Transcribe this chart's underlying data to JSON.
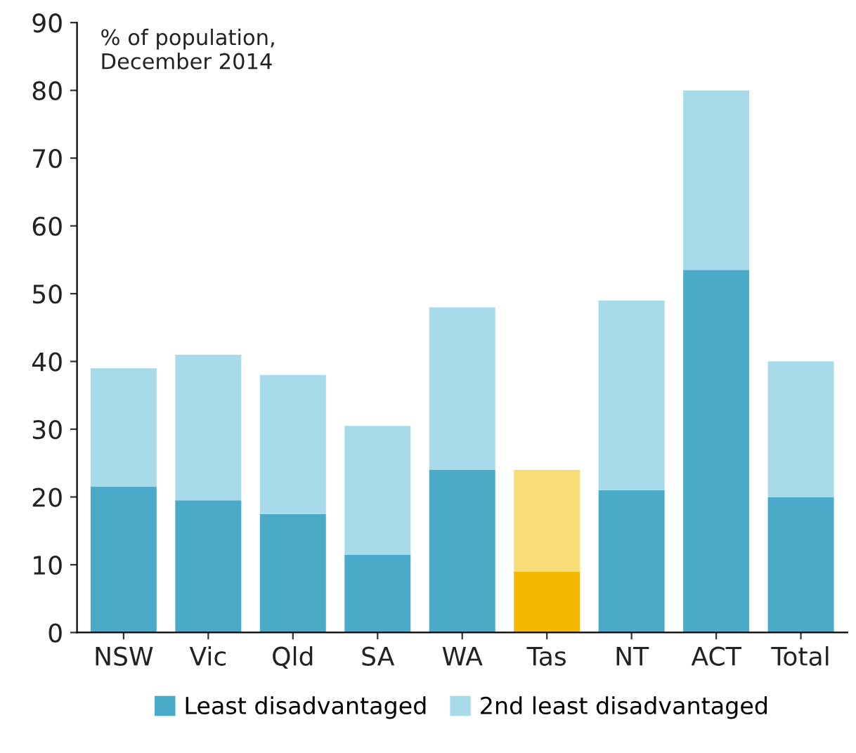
{
  "chart_data": {
    "type": "bar",
    "stacked": true,
    "categories": [
      "NSW",
      "Vic",
      "Qld",
      "SA",
      "WA",
      "Tas",
      "NT",
      "ACT",
      "Total"
    ],
    "series": [
      {
        "name": "Least disadvantaged",
        "color": "#4aaac8",
        "colors": [
          "#4aaac8",
          "#4aaac8",
          "#4aaac8",
          "#4aaac8",
          "#4aaac8",
          "#f5b800",
          "#4aaac8",
          "#4aaac8",
          "#4aaac8"
        ],
        "values": [
          21.5,
          19.5,
          17.5,
          11.5,
          24,
          9,
          21,
          53.5,
          20
        ]
      },
      {
        "name": "2nd least disadvantaged",
        "color": "#a8dbea",
        "colors": [
          "#a8dbea",
          "#a8dbea",
          "#a8dbea",
          "#a8dbea",
          "#a8dbea",
          "#f8dc78",
          "#a8dbea",
          "#a8dbea",
          "#a8dbea"
        ],
        "values": [
          17.5,
          21.5,
          20.5,
          19,
          24,
          15,
          28,
          26.5,
          20
        ]
      }
    ],
    "ylim": [
      0,
      90
    ],
    "yticks": [
      0,
      10,
      20,
      30,
      40,
      50,
      60,
      70,
      80,
      90
    ],
    "annotations": [
      {
        "text": "% of population,\nDecember 2014"
      }
    ],
    "grid": false,
    "legend": "bottom"
  }
}
